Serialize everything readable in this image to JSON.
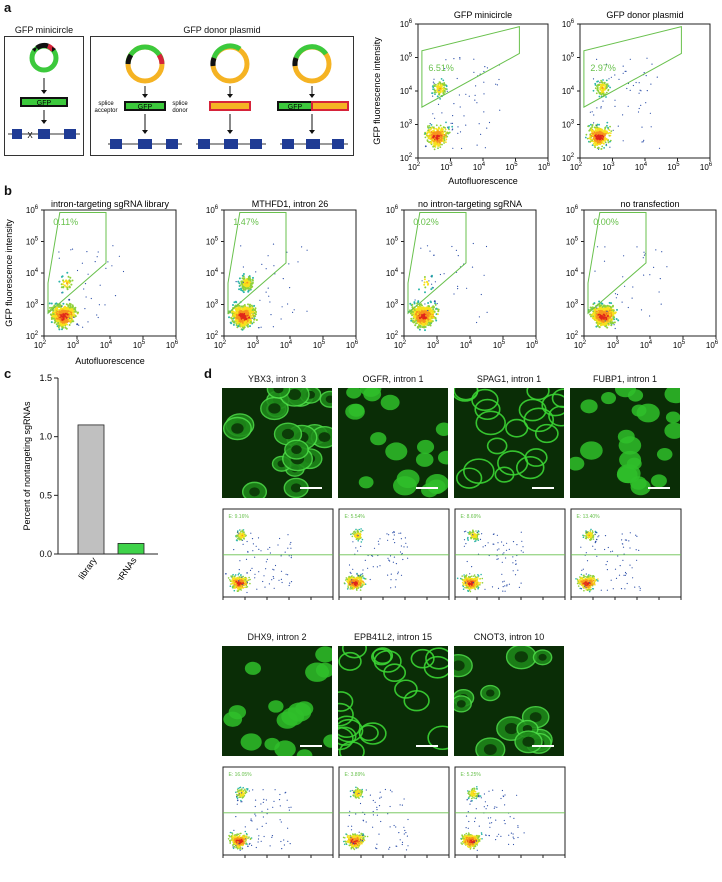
{
  "panel_labels": {
    "a": "a",
    "b": "b",
    "c": "c",
    "d": "d"
  },
  "panel_a": {
    "minicircle_title": "GFP minicircle",
    "donor_title": "GFP donor plasmid",
    "gfp_label": "GFP",
    "splice_acceptor": "splice\nacceptor",
    "splice_donor": "splice\ndonor",
    "flow": {
      "titles": [
        "GFP minicircle",
        "GFP donor plasmid"
      ],
      "percents": [
        "6.51%",
        "2.97%"
      ],
      "ylabel": "GFP fluorescence intensity",
      "xlabel": "Autofluorescence",
      "y_ticks": [
        "10",
        "10",
        "10",
        "10",
        "10"
      ],
      "y_exps": [
        "6",
        "5",
        "4",
        "3",
        "2"
      ],
      "x_ticks": [
        "10",
        "10",
        "10",
        "10",
        "10"
      ],
      "x_exps": [
        "2",
        "3",
        "4",
        "5",
        "6"
      ]
    }
  },
  "panel_b": {
    "titles": [
      "intron-targeting sgRNA library",
      "MTHFD1, intron 26",
      "no intron-targeting sgRNA",
      "no transfection"
    ],
    "percents": [
      "0.11%",
      "1.47%",
      "0.02%",
      "0.00%"
    ],
    "ylabel": "GFP fluorescence intensity",
    "xlabel": "Autofluorescence"
  },
  "panel_c": {
    "chart_data": {
      "type": "bar",
      "categories": [
        "whole library",
        "high-efficiency sgRNAs"
      ],
      "values": [
        1.1,
        0.09
      ],
      "colors": [
        "#c0c0c0",
        "#3fd34a"
      ],
      "ylabel": "Percent of nontargeting sgRNAs",
      "ylim": [
        0,
        1.5
      ],
      "y_ticks": [
        "0.0",
        "0.5",
        "1.0",
        "1.5"
      ]
    }
  },
  "panel_d": {
    "row1": [
      {
        "title": "YBX3, intron 3",
        "gate": "E: 9.16%"
      },
      {
        "title": "OGFR, intron 1",
        "gate": "E: 5.54%"
      },
      {
        "title": "SPAG1, intron 1",
        "gate": "E: 8.69%"
      },
      {
        "title": "FUBP1, intron 1",
        "gate": "E: 13.40%"
      }
    ],
    "row2": [
      {
        "title": "DHX9, intron 2",
        "gate": "E: 16.05%"
      },
      {
        "title": "EPB41L2, intron 15",
        "gate": "E: 3.89%"
      },
      {
        "title": "CNOT3, intron 10",
        "gate": "E: 5.25%"
      }
    ]
  }
}
